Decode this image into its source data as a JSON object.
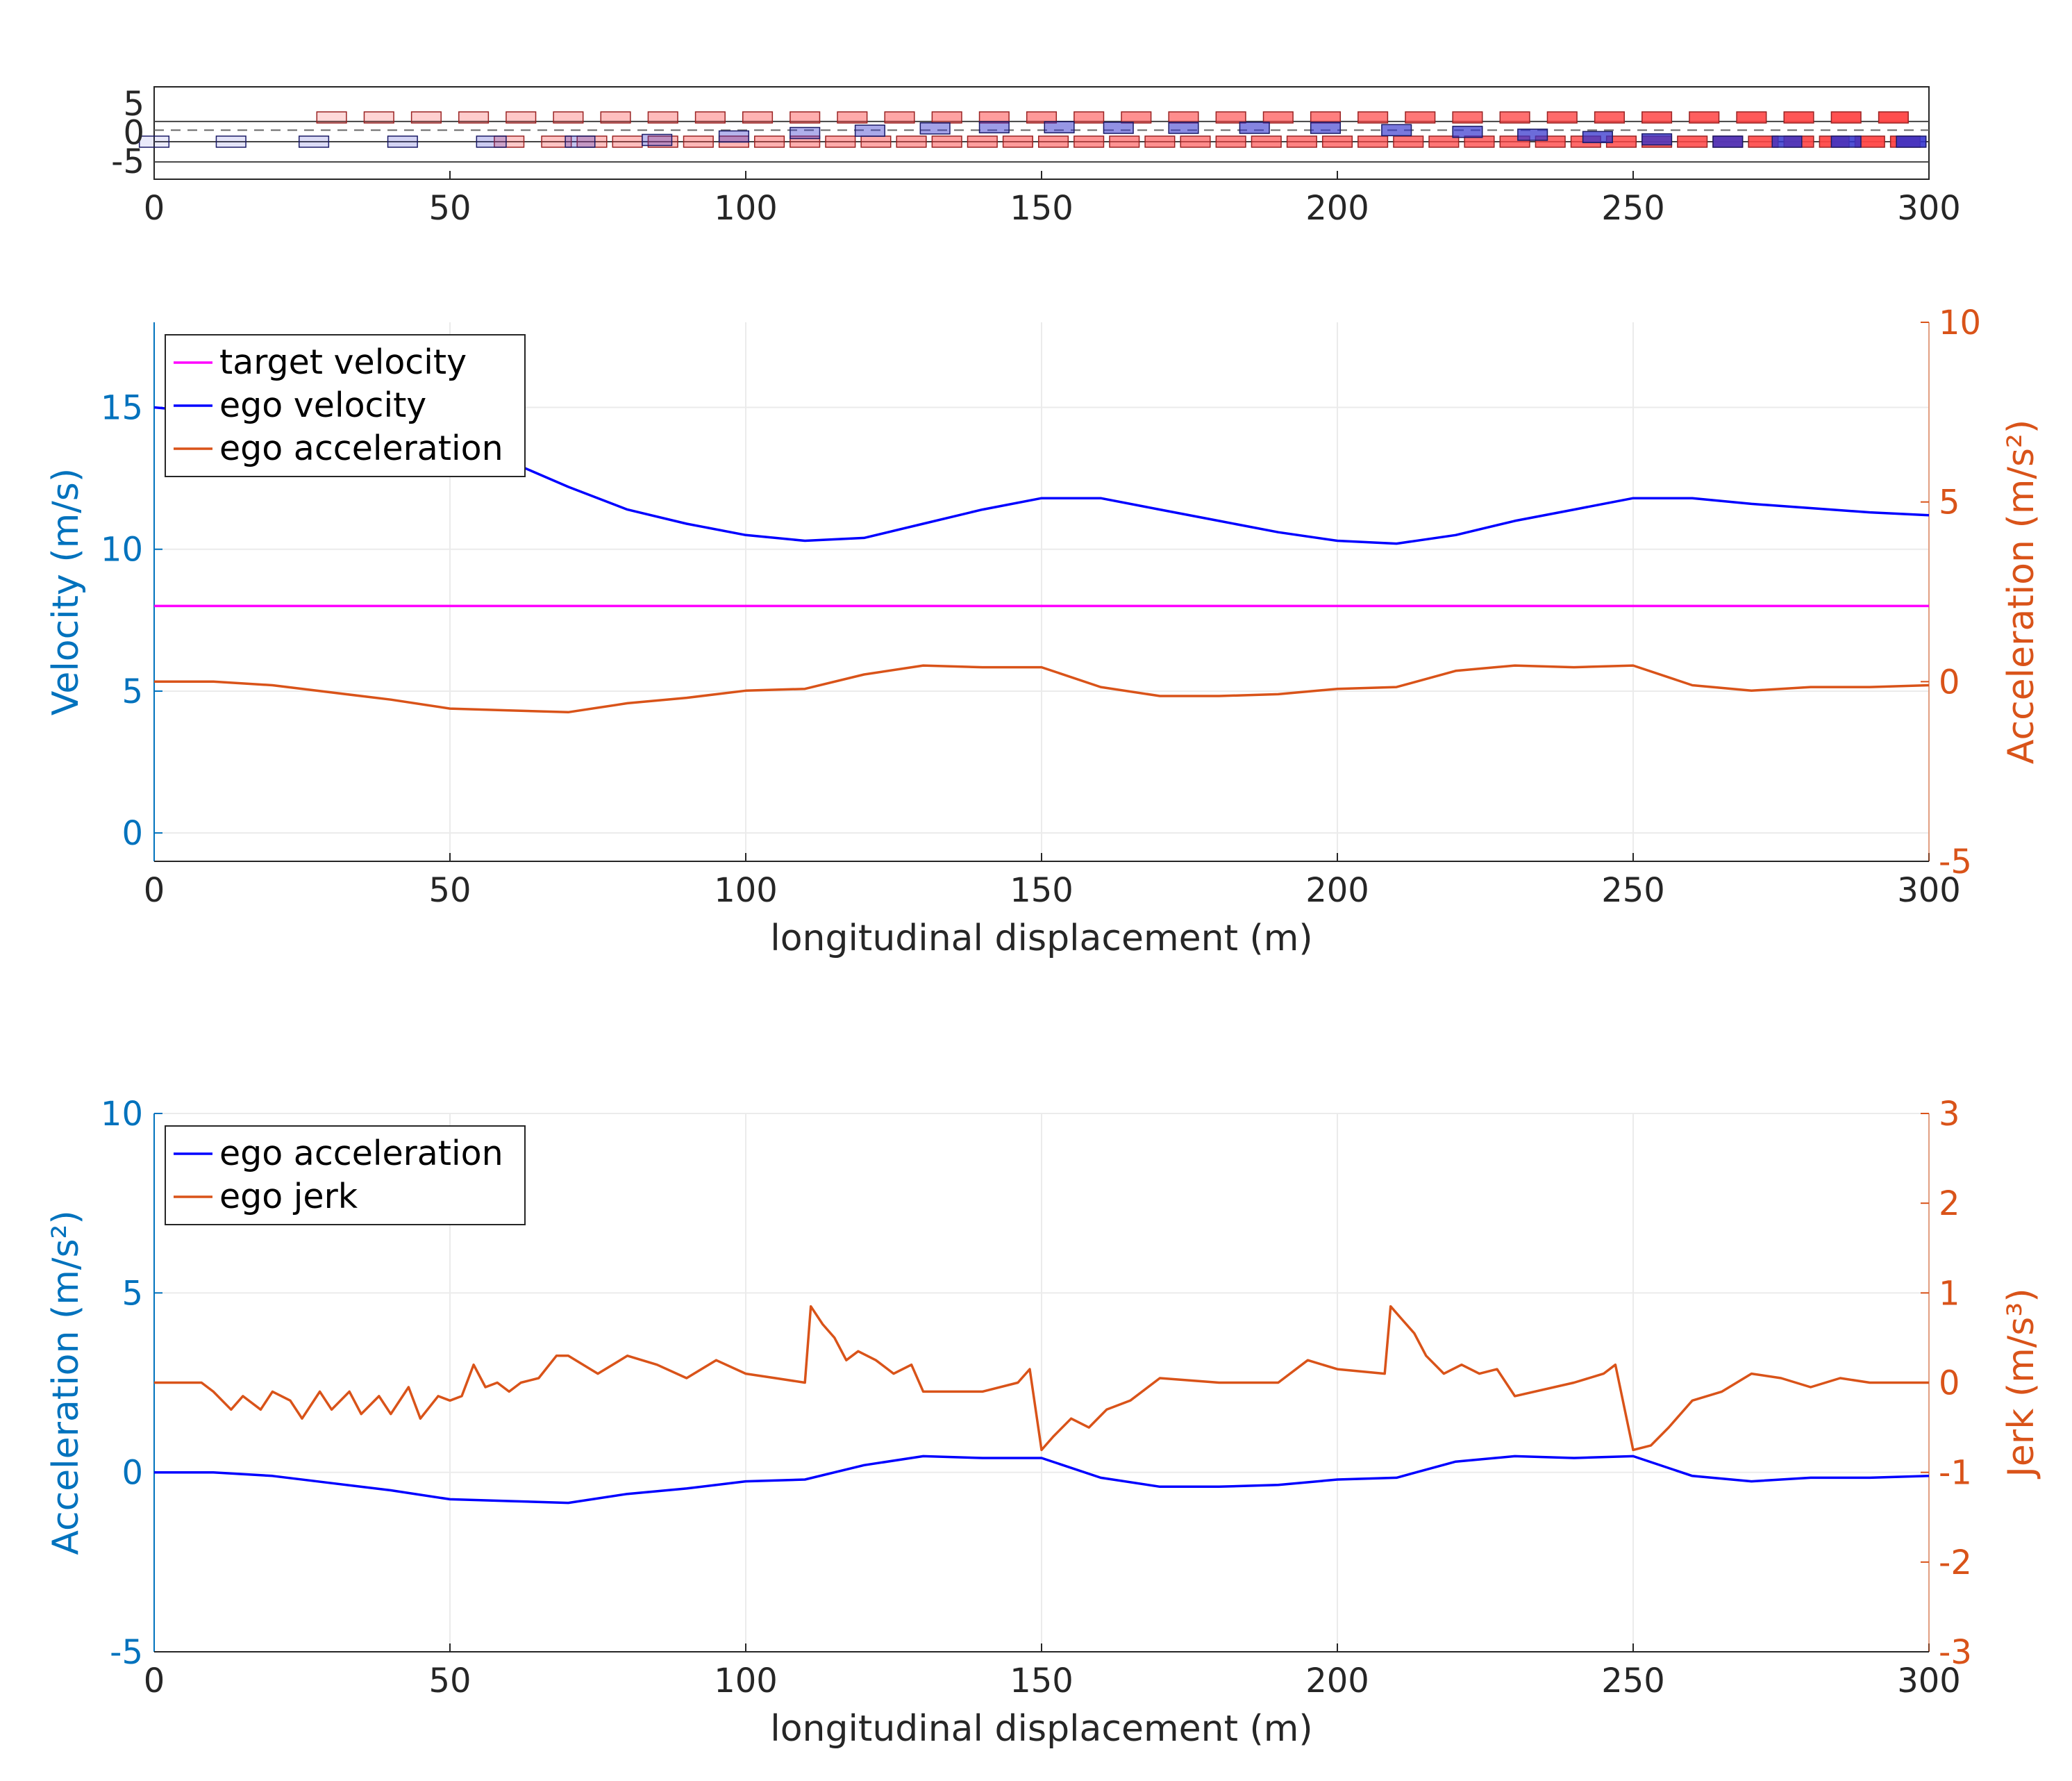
{
  "colors": {
    "target": "#FF00FF",
    "ego": "#0000FF",
    "orange": "#D95319",
    "leftAxis": "#0072BD",
    "axisText": "#262626",
    "grid": "#EBEBEB",
    "hostVehicle": "#3333CC",
    "otherVehicle": "#FF4444"
  },
  "chart_data": [
    {
      "id": "scene",
      "type": "scatter",
      "title": "",
      "xlabel": "",
      "ylabel": "",
      "xlim": [
        0,
        300
      ],
      "ylim": [
        -8,
        8
      ],
      "xticks": [
        0,
        50,
        100,
        150,
        200,
        250,
        300
      ],
      "xticklabels": [
        "0",
        "50",
        "100",
        "150",
        "200",
        "250",
        "300"
      ],
      "yticks": [
        5,
        0,
        -5
      ],
      "yticklabels": [
        "5",
        "0",
        "-5"
      ],
      "lane_lines": [
        -5,
        -1.5,
        2
      ],
      "lane_dividers_dashed": [
        0.5
      ],
      "ego_vehicle_x": [
        0,
        13,
        27,
        42,
        57,
        72,
        85,
        98,
        110,
        121,
        132,
        142,
        153,
        163,
        174,
        186,
        198,
        210,
        222,
        233,
        244,
        254,
        266,
        276,
        286,
        297
      ],
      "ego_vehicle_y": [
        -1.5,
        -1.5,
        -1.5,
        -1.5,
        -1.5,
        -1.5,
        -1.2,
        -0.6,
        0,
        0.4,
        0.8,
        1.0,
        1.0,
        0.9,
        0.9,
        0.9,
        0.9,
        0.5,
        0.2,
        -0.3,
        -0.7,
        -1.1,
        -1.5,
        -1.5,
        -1.5,
        -1.5
      ],
      "other_vehicles_upper_lane_x": [
        30,
        38,
        46,
        54,
        62,
        70,
        78,
        86,
        94,
        102,
        110,
        118,
        126,
        134,
        142,
        150,
        158,
        166,
        174,
        182,
        190,
        198,
        206,
        214,
        222,
        230,
        238,
        246,
        254,
        262,
        270,
        278,
        286,
        294
      ],
      "other_vehicles_lower_lane_x": [
        60,
        68,
        74,
        80,
        86,
        92,
        98,
        104,
        110,
        116,
        122,
        128,
        134,
        140,
        146,
        152,
        158,
        164,
        170,
        176,
        182,
        188,
        194,
        200,
        206,
        212,
        218,
        224,
        230,
        236,
        242,
        248,
        254,
        260,
        266,
        272,
        278,
        284,
        290,
        296
      ]
    },
    {
      "id": "velocity",
      "type": "line",
      "title": "",
      "xlabel": "longitudinal displacement (m)",
      "ylabel": "Velocity (m/s)",
      "ylabel2": "Acceleration (m/s²)",
      "xlim": [
        0,
        300
      ],
      "ylim": [
        -1,
        18
      ],
      "ylim2": [
        -5,
        10
      ],
      "xticks": [
        0,
        50,
        100,
        150,
        200,
        250,
        300
      ],
      "xticklabels": [
        "0",
        "50",
        "100",
        "150",
        "200",
        "250",
        "300"
      ],
      "yticks": [
        0,
        5,
        10,
        15
      ],
      "yticklabels": [
        "0",
        "5",
        "10",
        "15"
      ],
      "yticks2": [
        -5,
        0,
        5,
        10
      ],
      "yticklabels2": [
        "-5",
        "0",
        "5",
        "10"
      ],
      "grid": true,
      "legend": "top-left",
      "x": [
        0,
        10,
        20,
        30,
        40,
        50,
        60,
        70,
        80,
        90,
        100,
        110,
        120,
        130,
        140,
        150,
        160,
        170,
        180,
        190,
        200,
        210,
        220,
        230,
        240,
        250,
        260,
        270,
        280,
        290,
        300
      ],
      "series": [
        {
          "name": "target velocity",
          "axis": "left",
          "values": [
            8,
            8,
            8,
            8,
            8,
            8,
            8,
            8,
            8,
            8,
            8,
            8,
            8,
            8,
            8,
            8,
            8,
            8,
            8,
            8,
            8,
            8,
            8,
            8,
            8,
            8,
            8,
            8,
            8,
            8,
            8
          ]
        },
        {
          "name": "ego velocity",
          "axis": "left",
          "values": [
            15.0,
            14.8,
            14.6,
            14.3,
            14.0,
            13.8,
            13.1,
            12.2,
            11.4,
            10.9,
            10.5,
            10.3,
            10.4,
            10.9,
            11.4,
            11.8,
            11.8,
            11.4,
            11.0,
            10.6,
            10.3,
            10.2,
            10.5,
            11.0,
            11.4,
            11.8,
            11.8,
            11.6,
            11.45,
            11.3,
            11.2
          ]
        },
        {
          "name": "ego acceleration",
          "axis": "right",
          "values": [
            0.0,
            0.0,
            -0.1,
            -0.3,
            -0.5,
            -0.75,
            -0.8,
            -0.85,
            -0.6,
            -0.45,
            -0.25,
            -0.2,
            0.2,
            0.45,
            0.4,
            0.4,
            -0.15,
            -0.4,
            -0.4,
            -0.35,
            -0.2,
            -0.15,
            0.3,
            0.45,
            0.4,
            0.45,
            -0.1,
            -0.25,
            -0.15,
            -0.15,
            -0.1
          ]
        }
      ]
    },
    {
      "id": "jerk",
      "type": "line",
      "title": "",
      "xlabel": "longitudinal displacement (m)",
      "ylabel": "Acceleration (m/s²)",
      "ylabel2": "Jerk (m/s³)",
      "xlim": [
        0,
        300
      ],
      "ylim": [
        -5,
        10
      ],
      "ylim2": [
        -3,
        3
      ],
      "xticks": [
        0,
        50,
        100,
        150,
        200,
        250,
        300
      ],
      "xticklabels": [
        "0",
        "50",
        "100",
        "150",
        "200",
        "250",
        "300"
      ],
      "yticks": [
        -5,
        0,
        5,
        10
      ],
      "yticklabels": [
        "-5",
        "0",
        "5",
        "10"
      ],
      "yticks2": [
        -3,
        -2,
        -1,
        0,
        1,
        2,
        3
      ],
      "yticklabels2": [
        "-3",
        "-2",
        "-1",
        "0",
        "1",
        "2",
        "3"
      ],
      "grid": true,
      "legend": "top-left",
      "x_acc": [
        0,
        10,
        20,
        30,
        40,
        50,
        60,
        70,
        80,
        90,
        100,
        110,
        120,
        130,
        140,
        150,
        160,
        170,
        180,
        190,
        200,
        210,
        220,
        230,
        240,
        250,
        260,
        270,
        280,
        290,
        300
      ],
      "x_jerk": [
        0,
        8,
        10,
        13,
        15,
        18,
        20,
        23,
        25,
        28,
        30,
        33,
        35,
        38,
        40,
        43,
        45,
        48,
        50,
        52,
        54,
        56,
        58,
        60,
        62,
        65,
        68,
        70,
        75,
        80,
        85,
        90,
        95,
        100,
        105,
        110,
        111,
        113,
        115,
        117,
        119,
        122,
        125,
        128,
        130,
        140,
        146,
        148,
        150,
        152,
        155,
        158,
        161,
        165,
        170,
        180,
        190,
        195,
        200,
        208,
        209,
        211,
        213,
        215,
        218,
        221,
        224,
        227,
        230,
        240,
        245,
        247,
        250,
        253,
        256,
        260,
        265,
        270,
        275,
        280,
        285,
        290,
        300
      ],
      "series": [
        {
          "name": "ego acceleration",
          "axis": "left",
          "values": [
            0.0,
            0.0,
            -0.1,
            -0.3,
            -0.5,
            -0.75,
            -0.8,
            -0.85,
            -0.6,
            -0.45,
            -0.25,
            -0.2,
            0.2,
            0.45,
            0.4,
            0.4,
            -0.15,
            -0.4,
            -0.4,
            -0.35,
            -0.2,
            -0.15,
            0.3,
            0.45,
            0.4,
            0.45,
            -0.1,
            -0.25,
            -0.15,
            -0.15,
            -0.1
          ]
        },
        {
          "name": "ego jerk",
          "axis": "right",
          "values": [
            0.0,
            0.0,
            -0.1,
            -0.3,
            -0.15,
            -0.3,
            -0.1,
            -0.2,
            -0.4,
            -0.1,
            -0.3,
            -0.1,
            -0.35,
            -0.15,
            -0.35,
            -0.05,
            -0.4,
            -0.15,
            -0.2,
            -0.15,
            0.2,
            -0.05,
            0.0,
            -0.1,
            0.0,
            0.05,
            0.3,
            0.3,
            0.1,
            0.3,
            0.2,
            0.05,
            0.25,
            0.1,
            0.05,
            0.0,
            0.85,
            0.65,
            0.5,
            0.25,
            0.35,
            0.25,
            0.1,
            0.2,
            -0.1,
            -0.1,
            0.0,
            0.15,
            -0.75,
            -0.6,
            -0.4,
            -0.5,
            -0.3,
            -0.2,
            0.05,
            0.0,
            0.0,
            0.25,
            0.15,
            0.1,
            0.85,
            0.7,
            0.55,
            0.3,
            0.1,
            0.2,
            0.1,
            0.15,
            -0.15,
            0.0,
            0.1,
            0.2,
            -0.75,
            -0.7,
            -0.5,
            -0.2,
            -0.1,
            0.1,
            0.05,
            -0.05,
            0.05,
            0.0,
            0.0
          ]
        }
      ]
    }
  ]
}
